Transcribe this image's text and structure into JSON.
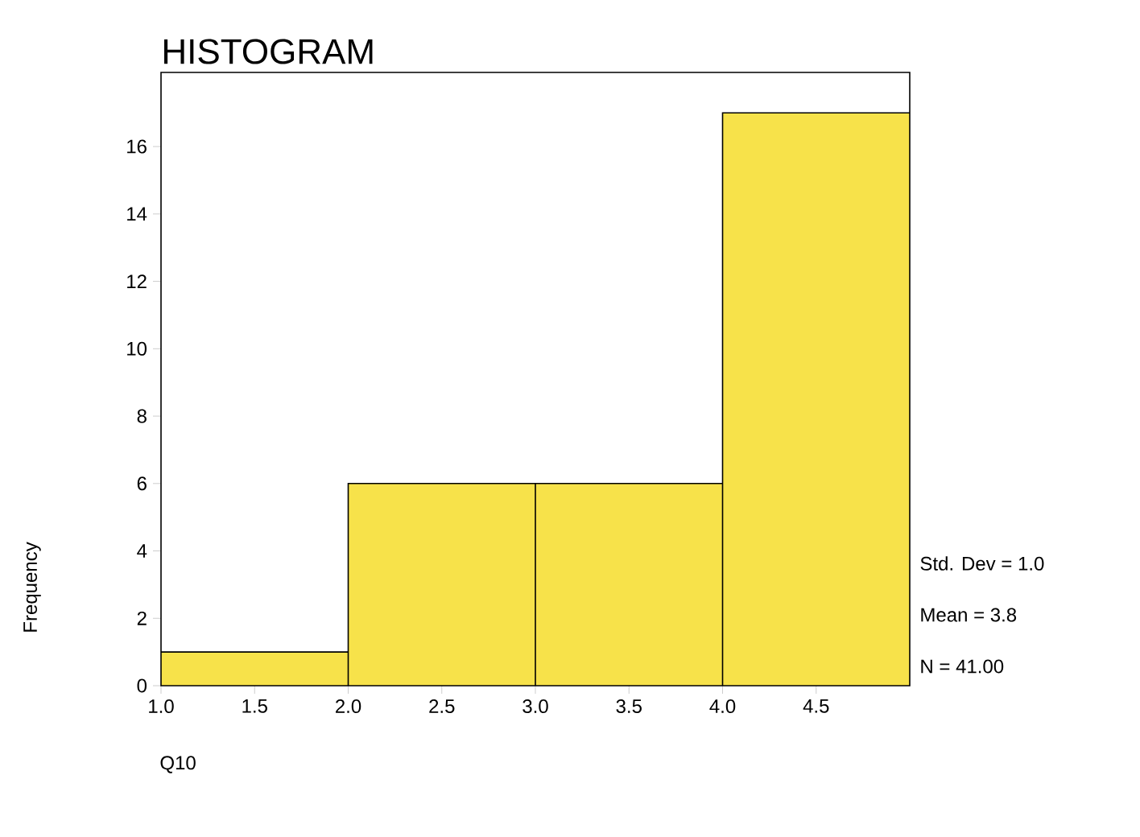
{
  "chart_data": {
    "type": "histogram",
    "title": "HISTOGRAM",
    "xlabel": "Q10",
    "ylabel": "Frequency",
    "bins": [
      1,
      2,
      3,
      4,
      5
    ],
    "values": [
      1,
      6,
      6,
      17
    ],
    "color": "#f7e24a",
    "xlim": [
      1,
      5
    ],
    "ylim": [
      0,
      18.2
    ],
    "xticks": [
      {
        "value": 1,
        "label": "1.0"
      },
      {
        "value": 1.5,
        "label": "1.5"
      },
      {
        "value": 2,
        "label": "2.0"
      },
      {
        "value": 2.5,
        "label": "2.5"
      },
      {
        "value": 3,
        "label": "3.0"
      },
      {
        "value": 3.5,
        "label": "3.5"
      },
      {
        "value": 4,
        "label": "4.0"
      },
      {
        "value": 4.5,
        "label": "4.5"
      }
    ],
    "yticks": [
      0,
      2,
      4,
      6,
      8,
      10,
      12,
      14,
      16
    ],
    "annotations": [
      "Std. Dev = 1.0",
      "Mean = 3.8",
      "N = 41.00"
    ]
  }
}
